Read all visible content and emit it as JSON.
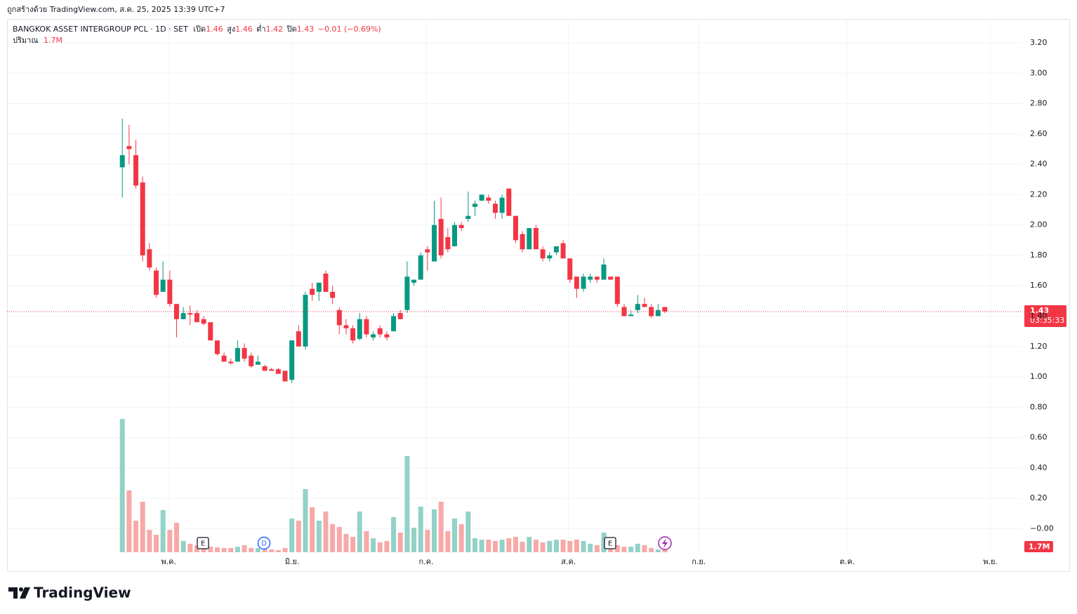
{
  "header": {
    "watermark": "ถูกสร้างด้วย TradingView.com, ส.ค. 25, 2025 13:39 UTC+7"
  },
  "chart_data": {
    "type": "candlestick",
    "title": "BANGKOK ASSET INTERGROUP PCL · 1D · SET",
    "legend": {
      "open_label": "เปิด",
      "open": "1.46",
      "high_label": "สูง",
      "high": "1.46",
      "low_label": "ต่ำ",
      "low": "1.42",
      "close_label": "ปิด",
      "close": "1.43",
      "change": "−0.01 (−0.69%)",
      "volume_label": "ปริมาณ",
      "volume": "1.7M"
    },
    "open": [
      2.38,
      2.52,
      2.46,
      2.28,
      1.84,
      1.7,
      1.56,
      1.64,
      1.48,
      1.38,
      1.42,
      1.42,
      1.38,
      1.36,
      1.24,
      1.14,
      1.1,
      1.1,
      1.19,
      1.14,
      1.08,
      1.07,
      1.05,
      1.05,
      1.04,
      0.98,
      1.3,
      1.2,
      1.58,
      1.56,
      1.68,
      1.56,
      1.44,
      1.34,
      1.32,
      1.25,
      1.38,
      1.26,
      1.32,
      1.28,
      1.3,
      1.42,
      1.44,
      1.62,
      1.64,
      1.84,
      1.76,
      2.04,
      1.92,
      1.86,
      2.0,
      2.04,
      2.12,
      2.16,
      2.18,
      2.14,
      2.08,
      2.24,
      2.06,
      1.94,
      1.84,
      1.98,
      1.84,
      1.78,
      1.82,
      1.88,
      1.78,
      1.66,
      1.58,
      1.64,
      1.66,
      1.64,
      1.66,
      1.66,
      1.46,
      1.4,
      1.44,
      1.48,
      1.46,
      1.4,
      1.46
    ],
    "high": [
      2.7,
      2.66,
      2.56,
      2.32,
      1.88,
      1.72,
      1.76,
      1.7,
      1.48,
      1.46,
      1.47,
      1.44,
      1.4,
      1.36,
      1.24,
      1.16,
      1.12,
      1.24,
      1.22,
      1.16,
      1.14,
      1.08,
      1.06,
      1.06,
      1.04,
      1.24,
      1.34,
      1.56,
      1.62,
      1.62,
      1.7,
      1.6,
      1.46,
      1.38,
      1.34,
      1.42,
      1.4,
      1.3,
      1.34,
      1.3,
      1.42,
      1.44,
      1.76,
      1.64,
      1.82,
      1.86,
      2.16,
      2.18,
      1.98,
      2.02,
      2.02,
      2.22,
      2.16,
      2.2,
      2.2,
      2.16,
      2.2,
      2.24,
      2.06,
      1.96,
      1.98,
      2.0,
      1.86,
      1.82,
      1.86,
      1.9,
      1.78,
      1.66,
      1.68,
      1.68,
      1.66,
      1.78,
      1.66,
      1.66,
      1.48,
      1.44,
      1.54,
      1.52,
      1.48,
      1.48,
      1.46
    ],
    "low": [
      2.18,
      2.4,
      2.24,
      1.76,
      1.7,
      1.52,
      1.56,
      1.46,
      1.26,
      1.38,
      1.34,
      1.36,
      1.34,
      1.24,
      1.14,
      1.1,
      1.08,
      1.1,
      1.1,
      1.06,
      1.08,
      1.04,
      1.04,
      1.02,
      0.97,
      0.96,
      1.2,
      1.18,
      1.5,
      1.5,
      1.56,
      1.48,
      1.28,
      1.28,
      1.22,
      1.24,
      1.26,
      1.24,
      1.26,
      1.24,
      1.3,
      1.38,
      1.42,
      1.6,
      1.64,
      1.7,
      1.76,
      1.78,
      1.82,
      1.86,
      1.96,
      2.02,
      2.06,
      2.16,
      2.14,
      2.04,
      2.04,
      2.06,
      1.88,
      1.82,
      1.84,
      1.84,
      1.76,
      1.76,
      1.8,
      1.78,
      1.62,
      1.52,
      1.56,
      1.62,
      1.62,
      1.64,
      1.64,
      1.46,
      1.4,
      1.4,
      1.42,
      1.46,
      1.39,
      1.4,
      1.42
    ],
    "close": [
      2.46,
      2.5,
      2.26,
      1.8,
      1.72,
      1.54,
      1.64,
      1.48,
      1.38,
      1.42,
      1.41,
      1.36,
      1.35,
      1.24,
      1.15,
      1.1,
      1.09,
      1.19,
      1.12,
      1.07,
      1.1,
      1.04,
      1.04,
      1.02,
      0.97,
      1.24,
      1.2,
      1.54,
      1.54,
      1.62,
      1.56,
      1.52,
      1.34,
      1.32,
      1.24,
      1.38,
      1.28,
      1.28,
      1.28,
      1.26,
      1.4,
      1.38,
      1.66,
      1.64,
      1.8,
      1.82,
      2.0,
      1.8,
      1.84,
      2.0,
      1.98,
      2.06,
      2.14,
      2.2,
      2.16,
      2.08,
      2.18,
      2.06,
      1.9,
      1.84,
      1.98,
      1.84,
      1.78,
      1.8,
      1.86,
      1.78,
      1.64,
      1.58,
      1.66,
      1.66,
      1.64,
      1.74,
      1.64,
      1.48,
      1.4,
      1.41,
      1.48,
      1.46,
      1.4,
      1.44,
      1.43
    ],
    "volume": [
      81.5,
      37.8,
      19.3,
      30.9,
      13.7,
      10.7,
      25.8,
      13.7,
      18.0,
      6.9,
      5.2,
      4.3,
      3.4,
      3.4,
      3.0,
      2.6,
      2.6,
      3.4,
      4.3,
      2.6,
      2.6,
      2.1,
      1.7,
      1.3,
      2.6,
      20.6,
      19.3,
      38.6,
      27.5,
      19.3,
      24.9,
      17.2,
      15.5,
      11.2,
      9.4,
      24.9,
      12.9,
      8.6,
      6.0,
      6.9,
      21.5,
      12.0,
      58.8,
      15.0,
      27.9,
      13.7,
      26.2,
      30.9,
      12.9,
      20.6,
      17.2,
      24.9,
      8.6,
      7.7,
      7.7,
      6.9,
      7.7,
      8.6,
      9.4,
      6.4,
      9.4,
      7.7,
      6.0,
      6.9,
      7.7,
      7.7,
      6.9,
      7.7,
      6.9,
      5.2,
      4.3,
      12.0,
      6.0,
      4.3,
      3.4,
      3.4,
      5.2,
      4.3,
      2.6,
      1.7,
      1.7
    ],
    "up_color": "#089981",
    "down_color": "#f23645",
    "volume_up_color": "#92d2c7",
    "volume_down_color": "#f7a9a7",
    "ylim": [
      -0.155,
      3.357
    ],
    "yticks": [
      {
        "value": 0,
        "label": "−0.00"
      },
      {
        "value": 0.2,
        "label": "0.20"
      },
      {
        "value": 0.4,
        "label": "0.40"
      },
      {
        "value": 0.6,
        "label": "0.60"
      },
      {
        "value": 0.8,
        "label": "0.80"
      },
      {
        "value": 1.0,
        "label": "1.00"
      },
      {
        "value": 1.2,
        "label": "1.20"
      },
      {
        "value": 1.4,
        "label": "1.40"
      },
      {
        "value": 1.6,
        "label": "1.60"
      },
      {
        "value": 1.8,
        "label": "1.80"
      },
      {
        "value": 2.0,
        "label": "2.00"
      },
      {
        "value": 2.2,
        "label": "2.20"
      },
      {
        "value": 2.4,
        "label": "2.40"
      },
      {
        "value": 2.6,
        "label": "2.60"
      },
      {
        "value": 2.8,
        "label": "2.80"
      },
      {
        "value": 3.0,
        "label": "3.00"
      },
      {
        "value": 3.2,
        "label": "3.20"
      }
    ],
    "xlim": [
      -17,
      132.7
    ],
    "xticks": [
      {
        "value": 6.83,
        "label": "พ.ค."
      },
      {
        "value": 25.05,
        "label": "มิ.ย."
      },
      {
        "value": 44.8,
        "label": "ก.ค."
      },
      {
        "value": 65.8,
        "label": "ส.ค."
      },
      {
        "value": 85.0,
        "label": "ก.ย."
      },
      {
        "value": 106.9,
        "label": "ต.ค."
      },
      {
        "value": 128.0,
        "label": "พ.ย."
      }
    ],
    "grid": true,
    "price_badge": "1.43",
    "countdown": "03:35:33",
    "volume_badge": "1.7M",
    "events": [
      "E",
      "D",
      "E"
    ]
  },
  "footer": {
    "brand": "TradingView"
  }
}
